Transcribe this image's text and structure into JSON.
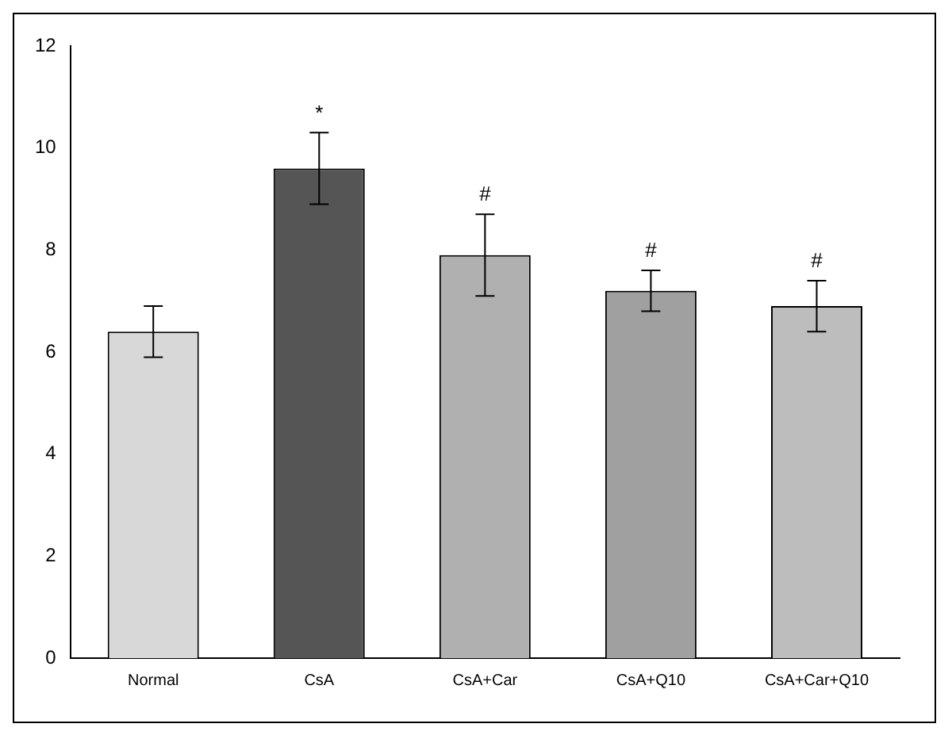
{
  "chart_data": {
    "type": "bar",
    "categories": [
      "Normal",
      "CsA",
      "CsA+Car",
      "CsA+Q10",
      "CsA+Car+Q10"
    ],
    "values": [
      6.4,
      9.6,
      7.9,
      7.2,
      6.9
    ],
    "errors": [
      0.5,
      0.7,
      0.8,
      0.4,
      0.5
    ],
    "colors": [
      "#d8d8d8",
      "#555555",
      "#b0b0b0",
      "#a0a0a0",
      "#bdbdbd"
    ],
    "value_labels": [
      null,
      "*",
      "#",
      "#",
      "#"
    ],
    "ylim": [
      0,
      12
    ],
    "yticks": [
      0,
      2,
      4,
      6,
      8,
      10,
      12
    ],
    "grid": false,
    "legend": false
  }
}
